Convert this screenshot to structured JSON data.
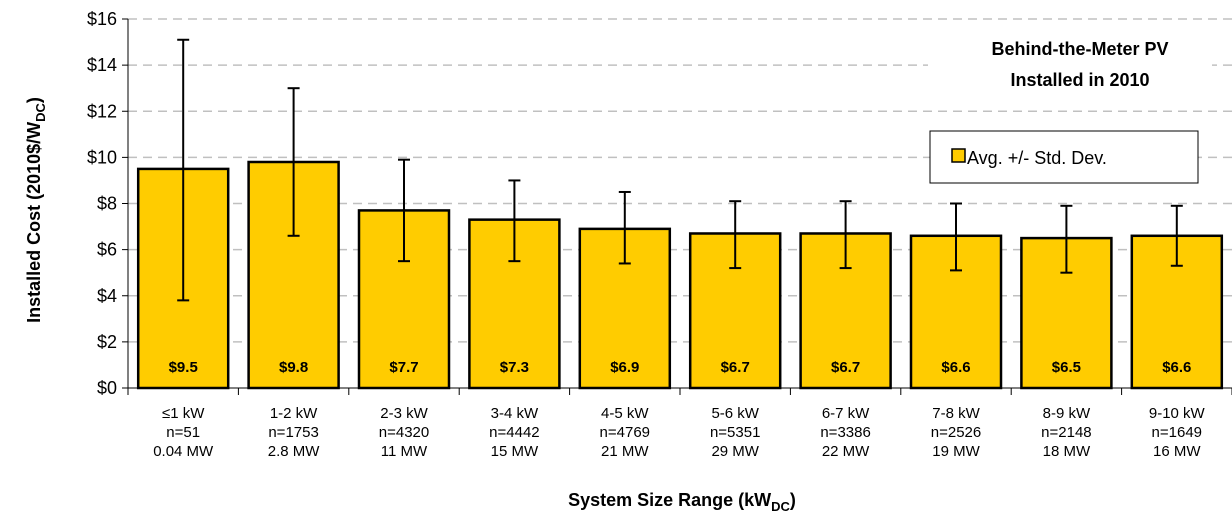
{
  "chart_data": {
    "type": "bar",
    "title_lines": [
      "Behind-the-Meter  PV",
      "Installed in 2010"
    ],
    "xlabel": {
      "main": "System  Size Range  (kW",
      "sub": "DC",
      "end": ")"
    },
    "ylabel": {
      "main": "Installed Cost  (2010$/W",
      "sub": "DC",
      "end": ")"
    },
    "ylim": [
      0,
      16
    ],
    "yticks": [
      0,
      2,
      4,
      6,
      8,
      10,
      12,
      14,
      16
    ],
    "ytick_labels": [
      "$0",
      "$2",
      "$4",
      "$6",
      "$8",
      "$10",
      "$12",
      "$14",
      "$16"
    ],
    "grid": true,
    "legend": {
      "position": "top-right",
      "label": "Avg. +/- Std. Dev."
    },
    "categories": [
      [
        "≤1 kW",
        "n=51",
        "0.04 MW"
      ],
      [
        "1-2 kW",
        "n=1753",
        "2.8 MW"
      ],
      [
        "2-3 kW",
        "n=4320",
        "11 MW"
      ],
      [
        "3-4 kW",
        "n=4442",
        "15 MW"
      ],
      [
        "4-5 kW",
        "n=4769",
        "21 MW"
      ],
      [
        "5-6 kW",
        "n=5351",
        "29 MW"
      ],
      [
        "6-7 kW",
        "n=3386",
        "22 MW"
      ],
      [
        "7-8 kW",
        "n=2526",
        "19 MW"
      ],
      [
        "8-9 kW",
        "n=2148",
        "18 MW"
      ],
      [
        "9-10 kW",
        "n=1649",
        "16 MW"
      ]
    ],
    "values": [
      9.5,
      9.8,
      7.7,
      7.3,
      6.9,
      6.7,
      6.7,
      6.6,
      6.5,
      6.6
    ],
    "value_labels": [
      "$9.5",
      "$9.8",
      "$7.7",
      "$7.3",
      "$6.9",
      "$6.7",
      "$6.7",
      "$6.6",
      "$6.5",
      "$6.6"
    ],
    "error_low": [
      3.8,
      6.6,
      5.5,
      5.5,
      5.4,
      5.2,
      5.2,
      5.1,
      5.0,
      5.3
    ],
    "error_high": [
      15.1,
      13.0,
      9.9,
      9.0,
      8.5,
      8.1,
      8.1,
      8.0,
      7.9,
      7.9
    ],
    "colors": {
      "bar": "#FFCC00",
      "bar_edge": "#000000",
      "grid": "#C0C0C0"
    }
  }
}
